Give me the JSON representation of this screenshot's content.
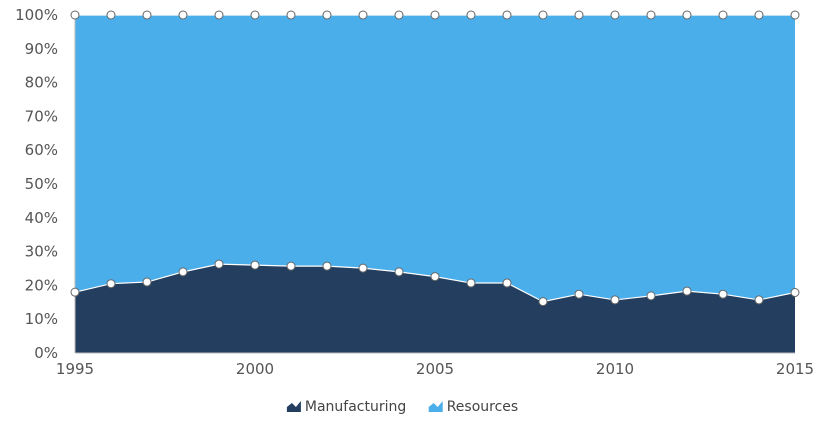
{
  "chart_data": {
    "type": "area",
    "stacking": "percent",
    "x": [
      1995,
      1996,
      1997,
      1998,
      1999,
      2000,
      2001,
      2002,
      2003,
      2004,
      2005,
      2006,
      2007,
      2008,
      2009,
      2010,
      2011,
      2012,
      2013,
      2014,
      2015
    ],
    "series": [
      {
        "name": "Manufacturing",
        "color": "#233e5f",
        "values": [
          18,
          20.5,
          21,
          24,
          26.3,
          26,
          25.7,
          25.7,
          25.1,
          24,
          22.6,
          20.7,
          20.7,
          15.2,
          17.4,
          15.7,
          16.9,
          18.3,
          17.4,
          15.7,
          17.9
        ]
      },
      {
        "name": "Resources",
        "color": "#4aaeea",
        "values": [
          82,
          79.5,
          79,
          76,
          73.7,
          74,
          74.3,
          74.3,
          74.9,
          76,
          77.4,
          79.3,
          79.3,
          84.8,
          82.6,
          84.3,
          83.1,
          81.7,
          82.6,
          84.3,
          82.1
        ]
      }
    ],
    "xlim": [
      1995,
      2015
    ],
    "ylim": [
      0,
      100
    ],
    "x_ticks": [
      "1995",
      "2000",
      "2005",
      "2010",
      "2015"
    ],
    "y_ticks": [
      "0%",
      "10%",
      "20%",
      "30%",
      "40%",
      "50%",
      "60%",
      "70%",
      "80%",
      "90%",
      "100%"
    ],
    "legend_position": "bottom-center",
    "grid": false,
    "markers": "hollow-circle"
  }
}
